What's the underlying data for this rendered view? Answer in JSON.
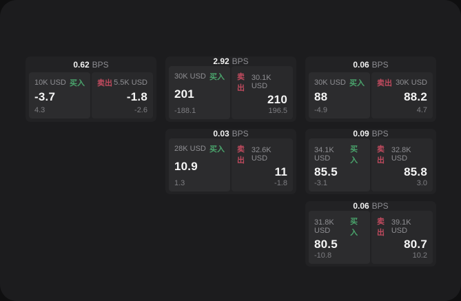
{
  "labels": {
    "buy": "买入",
    "sell": "卖出",
    "bps": "BPS"
  },
  "colors": {
    "background": "#0f0f10",
    "board": "#1c1c1e",
    "card": "#222224",
    "buy_panel": "#2c2c2e",
    "sell_panel": "#29292b",
    "accent_green": "#4aa46c",
    "accent_red": "#c04a5e"
  },
  "cards": [
    {
      "bps": "0.62",
      "buy": {
        "size": "10K USD",
        "price": "-3.7",
        "delta": "4.3"
      },
      "sell": {
        "size": "5.5K USD",
        "price": "-1.8",
        "delta": "-2.6"
      }
    },
    {
      "bps": "2.92",
      "buy": {
        "size": "30K USD",
        "price": "201",
        "delta": "-188.1"
      },
      "sell": {
        "size": "30.1K USD",
        "price": "210",
        "delta": "196.5"
      }
    },
    {
      "bps": "0.06",
      "buy": {
        "size": "30K USD",
        "price": "88",
        "delta": "-4.9"
      },
      "sell": {
        "size": "30K USD",
        "price": "88.2",
        "delta": "4.7"
      }
    },
    {
      "bps": "0.03",
      "buy": {
        "size": "28K USD",
        "price": "10.9",
        "delta": "1.3"
      },
      "sell": {
        "size": "32.6K USD",
        "price": "11",
        "delta": "-1.8"
      }
    },
    {
      "bps": "0.09",
      "buy": {
        "size": "34.1K USD",
        "price": "85.5",
        "delta": "-3.1"
      },
      "sell": {
        "size": "32.8K USD",
        "price": "85.8",
        "delta": "3.0"
      }
    },
    {
      "bps": "0.06",
      "buy": {
        "size": "31.8K USD",
        "price": "80.5",
        "delta": "-10.8"
      },
      "sell": {
        "size": "39.1K USD",
        "price": "80.7",
        "delta": "10.2"
      }
    }
  ]
}
